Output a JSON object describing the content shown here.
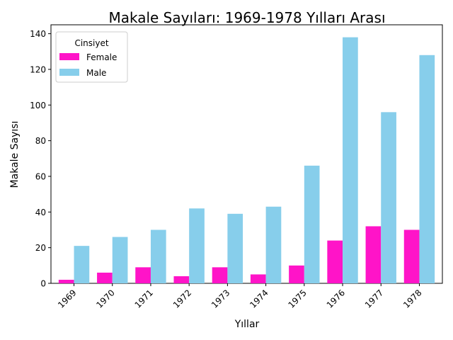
{
  "chart_data": {
    "type": "bar",
    "title": "Makale Sayıları: 1969-1978 Yılları Arası",
    "xlabel": "Yıllar",
    "ylabel": "Makale Sayısı",
    "categories": [
      "1969",
      "1970",
      "1971",
      "1972",
      "1973",
      "1974",
      "1975",
      "1976",
      "1977",
      "1978"
    ],
    "series": [
      {
        "name": "Female",
        "color": "#ff14c8",
        "values": [
          2,
          6,
          9,
          4,
          9,
          5,
          10,
          24,
          32,
          30
        ]
      },
      {
        "name": "Male",
        "color": "#87ceeb",
        "values": [
          21,
          26,
          30,
          42,
          39,
          43,
          66,
          138,
          96,
          128
        ]
      }
    ],
    "ylim": [
      0,
      145
    ],
    "yticks": [
      0,
      20,
      40,
      60,
      80,
      100,
      120,
      140
    ],
    "legend": {
      "title": "Cinsiyet",
      "placement": "top-left"
    },
    "grid": false
  }
}
